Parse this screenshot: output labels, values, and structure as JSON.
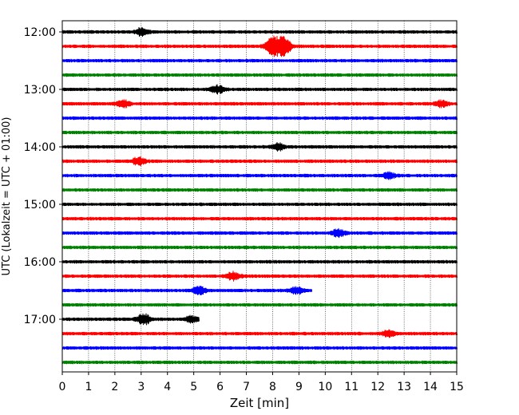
{
  "chart_data": {
    "type": "line",
    "title": "",
    "xlabel": "Zeit  [min]",
    "ylabel": "UTC (Lokalzeit = UTC + 01:00)",
    "xlim": [
      0,
      15
    ],
    "x_ticks": [
      "0",
      "1",
      "2",
      "3",
      "4",
      "5",
      "6",
      "7",
      "8",
      "9",
      "10",
      "11",
      "12",
      "13",
      "14",
      "15"
    ],
    "y_ticks": [
      {
        "label": "12:00",
        "trace": 0
      },
      {
        "label": "13:00",
        "trace": 4
      },
      {
        "label": "14:00",
        "trace": 8
      },
      {
        "label": "15:00",
        "trace": 12
      },
      {
        "label": "16:00",
        "trace": 16
      },
      {
        "label": "17:00",
        "trace": 20
      }
    ],
    "grid": "vertical dotted",
    "color_cycle": [
      "#000000",
      "#ff0000",
      "#0000ff",
      "#008000"
    ],
    "trace_count": 24,
    "traces": [
      {
        "start": "12:00",
        "end_min": 15,
        "events": [
          [
            3.0,
            2.0
          ]
        ]
      },
      {
        "start": "12:15",
        "end_min": 15,
        "events": [
          [
            8.0,
            5.0
          ],
          [
            8.4,
            6.5
          ]
        ]
      },
      {
        "start": "12:30",
        "end_min": 15,
        "events": []
      },
      {
        "start": "12:45",
        "end_min": 15,
        "events": []
      },
      {
        "start": "13:00",
        "end_min": 15,
        "events": [
          [
            5.9,
            2.0
          ]
        ]
      },
      {
        "start": "13:15",
        "end_min": 15,
        "events": [
          [
            2.3,
            2.0
          ],
          [
            14.4,
            1.6
          ]
        ]
      },
      {
        "start": "13:30",
        "end_min": 15,
        "events": []
      },
      {
        "start": "13:45",
        "end_min": 15,
        "events": []
      },
      {
        "start": "14:00",
        "end_min": 15,
        "events": [
          [
            8.2,
            1.8
          ]
        ]
      },
      {
        "start": "14:15",
        "end_min": 15,
        "events": [
          [
            2.9,
            2.0
          ]
        ]
      },
      {
        "start": "14:30",
        "end_min": 15,
        "events": [
          [
            12.4,
            1.6
          ]
        ]
      },
      {
        "start": "14:45",
        "end_min": 15,
        "events": []
      },
      {
        "start": "15:00",
        "end_min": 15,
        "events": []
      },
      {
        "start": "15:15",
        "end_min": 15,
        "events": []
      },
      {
        "start": "15:30",
        "end_min": 15,
        "events": [
          [
            10.5,
            2.0
          ]
        ]
      },
      {
        "start": "15:45",
        "end_min": 15,
        "events": []
      },
      {
        "start": "16:00",
        "end_min": 15,
        "events": []
      },
      {
        "start": "16:15",
        "end_min": 15,
        "events": [
          [
            6.5,
            2.2
          ]
        ]
      },
      {
        "start": "16:30",
        "end_min": 9.5,
        "events": [
          [
            5.2,
            2.0
          ],
          [
            8.9,
            1.8
          ]
        ]
      },
      {
        "start": "16:45",
        "end_min": 15,
        "events": []
      },
      {
        "start": "17:00",
        "end_min": 5.2,
        "events": [
          [
            3.1,
            3.0
          ],
          [
            4.9,
            1.5
          ]
        ]
      },
      {
        "start": "17:15",
        "end_min": 15,
        "events": [
          [
            12.4,
            1.5
          ]
        ]
      },
      {
        "start": "17:30",
        "end_min": 15,
        "events": []
      },
      {
        "start": "17:45",
        "end_min": 15,
        "events": []
      }
    ]
  }
}
